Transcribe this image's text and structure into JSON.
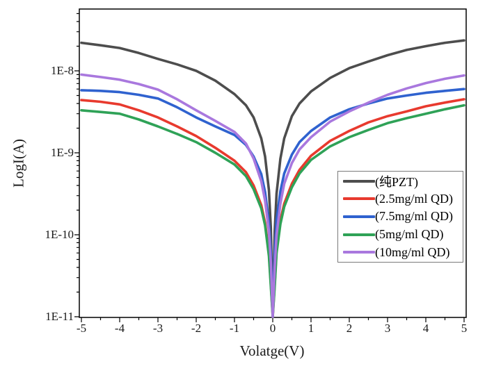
{
  "chart_data": {
    "type": "line",
    "title": "",
    "xlabel": "Volatge(V)",
    "ylabel": "LogI(A)",
    "xlim": [
      -5,
      5
    ],
    "ylim_log": [
      1e-11,
      5.7e-08
    ],
    "x_scale": "linear",
    "y_scale": "log",
    "grid": false,
    "x_major_ticks": [
      -5,
      -4,
      -3,
      -2,
      -1,
      0,
      1,
      2,
      3,
      4,
      5
    ],
    "x_tick_labels": [
      "-5",
      "-4",
      "-3",
      "-2",
      "-1",
      "0",
      "1",
      "2",
      "3",
      "4",
      "5"
    ],
    "x_minor_step": 0.5,
    "y_major_ticks": [
      {
        "label": "1E-8",
        "value": 1e-08
      },
      {
        "label": "1E-9",
        "value": 1e-09
      },
      {
        "label": "1E-10",
        "value": 1e-10
      },
      {
        "label": "1E-11",
        "value": 1e-11
      }
    ],
    "legend": {
      "position": "right-middle",
      "border_color": "#7a7a7a"
    },
    "series": [
      {
        "name": "(纯PZT)",
        "color": "#4d4d4d",
        "points": [
          [
            -5,
            2.2e-08
          ],
          [
            -4.5,
            2.05e-08
          ],
          [
            -4,
            1.9e-08
          ],
          [
            -3.5,
            1.65e-08
          ],
          [
            -3,
            1.4e-08
          ],
          [
            -2.5,
            1.2e-08
          ],
          [
            -2,
            1e-08
          ],
          [
            -1.5,
            7.6e-09
          ],
          [
            -1,
            5.2e-09
          ],
          [
            -0.7,
            3.8e-09
          ],
          [
            -0.5,
            2.7e-09
          ],
          [
            -0.3,
            1.5e-09
          ],
          [
            -0.2,
            9e-10
          ],
          [
            -0.1,
            3.5e-10
          ],
          [
            -0.05,
            1.2e-10
          ],
          [
            0,
            1e-11
          ],
          [
            0.05,
            1.1e-10
          ],
          [
            0.1,
            3.2e-10
          ],
          [
            0.2,
            8.5e-10
          ],
          [
            0.3,
            1.5e-09
          ],
          [
            0.5,
            2.8e-09
          ],
          [
            0.7,
            4e-09
          ],
          [
            1,
            5.6e-09
          ],
          [
            1.5,
            8.2e-09
          ],
          [
            2,
            1.08e-08
          ],
          [
            2.5,
            1.3e-08
          ],
          [
            3,
            1.55e-08
          ],
          [
            3.5,
            1.8e-08
          ],
          [
            4,
            2e-08
          ],
          [
            4.5,
            2.2e-08
          ],
          [
            5,
            2.35e-08
          ]
        ]
      },
      {
        "name": "(2.5mg/ml QD)",
        "color": "#e83a2e",
        "points": [
          [
            -5,
            4.4e-09
          ],
          [
            -4.5,
            4.2e-09
          ],
          [
            -4,
            3.9e-09
          ],
          [
            -3.5,
            3.3e-09
          ],
          [
            -3,
            2.7e-09
          ],
          [
            -2.5,
            2.1e-09
          ],
          [
            -2,
            1.6e-09
          ],
          [
            -1.5,
            1.15e-09
          ],
          [
            -1,
            8e-10
          ],
          [
            -0.7,
            5.8e-10
          ],
          [
            -0.5,
            4e-10
          ],
          [
            -0.3,
            2.3e-10
          ],
          [
            -0.2,
            1.4e-10
          ],
          [
            -0.1,
            6e-11
          ],
          [
            -0.05,
            2.5e-11
          ],
          [
            0,
            1e-11
          ],
          [
            0.05,
            2.5e-11
          ],
          [
            0.1,
            6.5e-11
          ],
          [
            0.2,
            1.5e-10
          ],
          [
            0.3,
            2.4e-10
          ],
          [
            0.5,
            4.2e-10
          ],
          [
            0.7,
            6.2e-10
          ],
          [
            1,
            9.2e-10
          ],
          [
            1.5,
            1.4e-09
          ],
          [
            2,
            1.85e-09
          ],
          [
            2.5,
            2.35e-09
          ],
          [
            3,
            2.8e-09
          ],
          [
            3.5,
            3.2e-09
          ],
          [
            4,
            3.7e-09
          ],
          [
            4.5,
            4.1e-09
          ],
          [
            5,
            4.5e-09
          ]
        ]
      },
      {
        "name": "(7.5mg/ml QD)",
        "color": "#2f62cf",
        "points": [
          [
            -5,
            5.8e-09
          ],
          [
            -4.5,
            5.7e-09
          ],
          [
            -4,
            5.5e-09
          ],
          [
            -3.5,
            5.1e-09
          ],
          [
            -3,
            4.6e-09
          ],
          [
            -2.5,
            3.6e-09
          ],
          [
            -2,
            2.7e-09
          ],
          [
            -1.5,
            2.1e-09
          ],
          [
            -1,
            1.65e-09
          ],
          [
            -0.7,
            1.25e-09
          ],
          [
            -0.5,
            9e-10
          ],
          [
            -0.3,
            5.5e-10
          ],
          [
            -0.2,
            3.3e-10
          ],
          [
            -0.1,
            1.4e-10
          ],
          [
            -0.05,
            6e-11
          ],
          [
            0,
            1e-11
          ],
          [
            0.05,
            6e-11
          ],
          [
            0.1,
            1.5e-10
          ],
          [
            0.2,
            3.4e-10
          ],
          [
            0.3,
            5.6e-10
          ],
          [
            0.5,
            9.5e-10
          ],
          [
            0.7,
            1.35e-09
          ],
          [
            1,
            1.85e-09
          ],
          [
            1.5,
            2.7e-09
          ],
          [
            2,
            3.4e-09
          ],
          [
            2.5,
            4e-09
          ],
          [
            3,
            4.6e-09
          ],
          [
            3.5,
            5e-09
          ],
          [
            4,
            5.4e-09
          ],
          [
            4.5,
            5.7e-09
          ],
          [
            5,
            6e-09
          ]
        ]
      },
      {
        "name": "(5mg/ml QD)",
        "color": "#2fa257",
        "points": [
          [
            -5,
            3.3e-09
          ],
          [
            -4.5,
            3.15e-09
          ],
          [
            -4,
            3e-09
          ],
          [
            -3.5,
            2.55e-09
          ],
          [
            -3,
            2.1e-09
          ],
          [
            -2.5,
            1.7e-09
          ],
          [
            -2,
            1.35e-09
          ],
          [
            -1.5,
            1e-09
          ],
          [
            -1,
            7.2e-10
          ],
          [
            -0.7,
            5.2e-10
          ],
          [
            -0.5,
            3.6e-10
          ],
          [
            -0.3,
            2.1e-10
          ],
          [
            -0.2,
            1.3e-10
          ],
          [
            -0.1,
            5.5e-11
          ],
          [
            -0.05,
            2.3e-11
          ],
          [
            0,
            1e-11
          ],
          [
            0.05,
            2.3e-11
          ],
          [
            0.1,
            6e-11
          ],
          [
            0.2,
            1.35e-10
          ],
          [
            0.3,
            2.2e-10
          ],
          [
            0.5,
            3.8e-10
          ],
          [
            0.7,
            5.6e-10
          ],
          [
            1,
            8.2e-10
          ],
          [
            1.5,
            1.2e-09
          ],
          [
            2,
            1.55e-09
          ],
          [
            2.5,
            1.9e-09
          ],
          [
            3,
            2.3e-09
          ],
          [
            3.5,
            2.65e-09
          ],
          [
            4,
            3e-09
          ],
          [
            4.5,
            3.4e-09
          ],
          [
            5,
            3.8e-09
          ]
        ]
      },
      {
        "name": "(10mg/ml QD)",
        "color": "#a978de",
        "points": [
          [
            -5,
            9e-09
          ],
          [
            -4.5,
            8.4e-09
          ],
          [
            -4,
            7.8e-09
          ],
          [
            -3.5,
            6.9e-09
          ],
          [
            -3,
            5.9e-09
          ],
          [
            -2.5,
            4.5e-09
          ],
          [
            -2,
            3.3e-09
          ],
          [
            -1.5,
            2.45e-09
          ],
          [
            -1,
            1.8e-09
          ],
          [
            -0.7,
            1.3e-09
          ],
          [
            -0.5,
            8.5e-10
          ],
          [
            -0.3,
            4.5e-10
          ],
          [
            -0.2,
            2.6e-10
          ],
          [
            -0.1,
            1.1e-10
          ],
          [
            -0.05,
            4.5e-11
          ],
          [
            0,
            1e-11
          ],
          [
            0.05,
            4e-11
          ],
          [
            0.1,
            1e-10
          ],
          [
            0.2,
            2.4e-10
          ],
          [
            0.3,
            4.2e-10
          ],
          [
            0.5,
            7.5e-10
          ],
          [
            0.7,
            1.1e-09
          ],
          [
            1,
            1.55e-09
          ],
          [
            1.5,
            2.4e-09
          ],
          [
            2,
            3.2e-09
          ],
          [
            2.5,
            4.1e-09
          ],
          [
            3,
            5.1e-09
          ],
          [
            3.5,
            6.1e-09
          ],
          [
            4,
            7.1e-09
          ],
          [
            4.5,
            8e-09
          ],
          [
            5,
            8.8e-09
          ]
        ]
      }
    ]
  }
}
